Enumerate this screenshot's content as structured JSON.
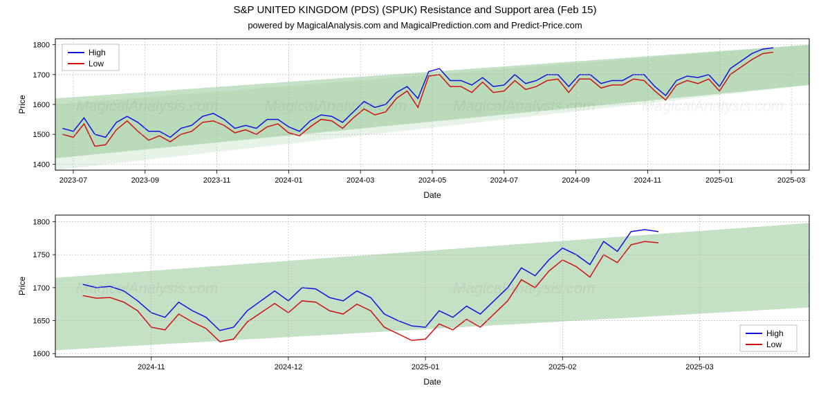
{
  "titles": {
    "main": "S&P UNITED KINGDOM (PDS) (SPUK) Resistance and Support area (Feb 15)",
    "sub": "powered by MagicalAnalysis.com and MagicalPrediction.com and Predict-Price.com"
  },
  "watermark_text": "MagicalAnalysis.com",
  "legend": {
    "high": "High",
    "low": "Low"
  },
  "colors": {
    "high_line": "#1010e0",
    "low_line": "#d01010",
    "band_fill": "#94c796",
    "band_fill_light": "#b8dcb8",
    "grid": "#b0b0b0",
    "frame": "#000000",
    "background": "#ffffff"
  },
  "line_width": 1.5,
  "chart1": {
    "type": "line",
    "xlabel": "Date",
    "ylabel": "Price",
    "ylim": [
      1380,
      1820
    ],
    "yticks": [
      1400,
      1500,
      1600,
      1700,
      1800
    ],
    "x_start": 0,
    "x_end": 21,
    "xticks_idx": [
      0.5,
      2.5,
      4.5,
      6.5,
      8.5,
      10.5,
      12.5,
      14.5,
      16.5,
      18.5,
      20.5
    ],
    "xticks_label": [
      "2023-07",
      "2023-09",
      "2023-11",
      "2024-01",
      "2024-03",
      "2024-05",
      "2024-07",
      "2024-09",
      "2024-11",
      "2025-01",
      "2025-03"
    ],
    "band_top": {
      "start": 1620,
      "end": 1800
    },
    "band_bot": {
      "start": 1420,
      "end": 1665
    },
    "band_light_top": {
      "start": 1600,
      "end": 1800
    },
    "band_light_bot": {
      "start": 1380,
      "end": 1665
    },
    "high": [
      1520,
      1510,
      1555,
      1500,
      1490,
      1540,
      1560,
      1540,
      1510,
      1510,
      1490,
      1520,
      1530,
      1560,
      1570,
      1550,
      1520,
      1530,
      1520,
      1550,
      1550,
      1525,
      1510,
      1545,
      1565,
      1560,
      1540,
      1575,
      1610,
      1590,
      1600,
      1640,
      1660,
      1620,
      1710,
      1720,
      1680,
      1680,
      1665,
      1690,
      1660,
      1665,
      1700,
      1670,
      1680,
      1700,
      1700,
      1660,
      1700,
      1700,
      1670,
      1680,
      1680,
      1700,
      1700,
      1660,
      1630,
      1680,
      1695,
      1690,
      1700,
      1660,
      1720,
      1745,
      1770,
      1785,
      1790
    ],
    "low": [
      1500,
      1490,
      1535,
      1460,
      1465,
      1515,
      1545,
      1510,
      1480,
      1495,
      1475,
      1500,
      1510,
      1540,
      1545,
      1530,
      1505,
      1515,
      1500,
      1525,
      1535,
      1505,
      1495,
      1525,
      1550,
      1545,
      1520,
      1555,
      1585,
      1565,
      1575,
      1620,
      1645,
      1590,
      1695,
      1700,
      1660,
      1660,
      1640,
      1675,
      1640,
      1645,
      1680,
      1650,
      1660,
      1680,
      1685,
      1640,
      1685,
      1685,
      1655,
      1665,
      1665,
      1685,
      1680,
      1645,
      1615,
      1665,
      1680,
      1670,
      1685,
      1645,
      1700,
      1725,
      1750,
      1770,
      1775
    ],
    "legend_pos": "top-left"
  },
  "chart2": {
    "type": "line",
    "xlabel": "Date",
    "ylabel": "Price",
    "ylim": [
      1595,
      1810
    ],
    "yticks": [
      1600,
      1650,
      1700,
      1750,
      1800
    ],
    "x_start": 0,
    "x_end": 5.5,
    "xticks_idx": [
      0.7,
      1.7,
      2.7,
      3.7,
      4.7
    ],
    "xticks_label": [
      "2024-11",
      "2024-12",
      "2025-01",
      "2025-02",
      "2025-03"
    ],
    "band_top": {
      "start": 1715,
      "end": 1798
    },
    "band_bot": {
      "start": 1605,
      "end": 1670
    },
    "high": [
      1705,
      1700,
      1702,
      1695,
      1680,
      1662,
      1655,
      1678,
      1665,
      1655,
      1635,
      1640,
      1665,
      1680,
      1695,
      1680,
      1700,
      1698,
      1685,
      1680,
      1695,
      1685,
      1660,
      1650,
      1642,
      1640,
      1665,
      1655,
      1672,
      1660,
      1680,
      1700,
      1730,
      1718,
      1742,
      1760,
      1750,
      1735,
      1770,
      1755,
      1785,
      1788,
      1785
    ],
    "low": [
      1688,
      1684,
      1685,
      1678,
      1665,
      1640,
      1636,
      1660,
      1648,
      1638,
      1618,
      1622,
      1648,
      1662,
      1676,
      1662,
      1680,
      1678,
      1665,
      1660,
      1675,
      1665,
      1640,
      1630,
      1620,
      1622,
      1645,
      1636,
      1652,
      1640,
      1660,
      1680,
      1712,
      1700,
      1725,
      1742,
      1732,
      1716,
      1750,
      1738,
      1765,
      1770,
      1768
    ],
    "legend_pos": "bottom-right"
  }
}
